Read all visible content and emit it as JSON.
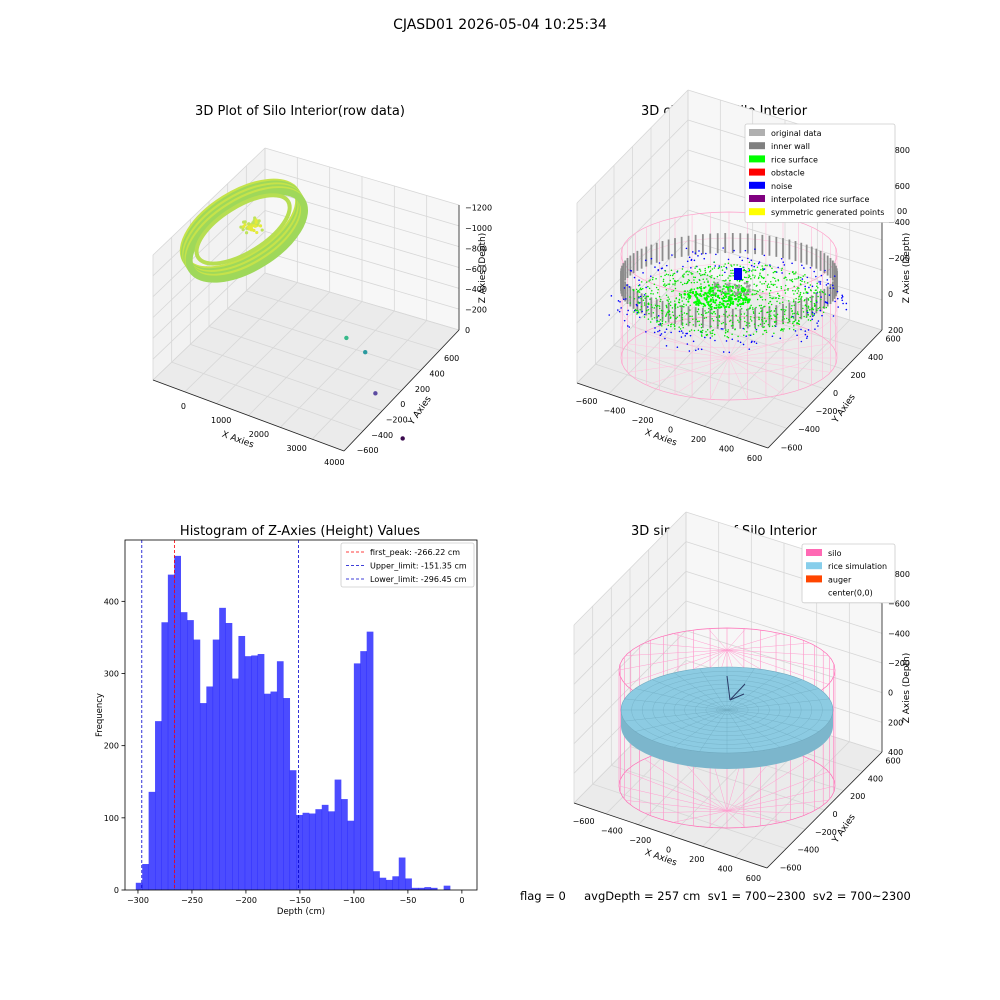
{
  "suptitle": "CJASD01 2026-05-04 10:25:34",
  "footer": "flag = 0     avgDepth = 257 cm  sv1 = 700~2300  sv2 = 700~2300",
  "chart_data": [
    {
      "type": "scatter",
      "title": "3D Plot of Silo Interior(row data)",
      "xlabel": "X Axies",
      "ylabel": "Y Axies",
      "zlabel": "Z Axies (Depth)",
      "x_ticks": [
        "0",
        "1000",
        "2000",
        "3000",
        "4000"
      ],
      "y_ticks": [
        "600",
        "400",
        "200",
        "0",
        "−200",
        "−400",
        "−600"
      ],
      "z_ticks": [
        "0",
        "−200",
        "−400",
        "−600",
        "−800",
        "−1000",
        "−1200"
      ],
      "outliers": [
        {
          "x": 1550,
          "y": -100,
          "z": -800
        },
        {
          "x": 1800,
          "y": 30,
          "z": -1000
        },
        {
          "x": 2600,
          "y": -250,
          "z": -1100
        },
        {
          "x": 3800,
          "y": -500,
          "z": -1200
        }
      ]
    },
    {
      "type": "scatter",
      "title": "3D classify of Silo Interior",
      "xlabel": "X Axies",
      "ylabel": "Y Axies",
      "zlabel": "Z Axies (Depth)",
      "x_ticks": [
        "−600",
        "−400",
        "−200",
        "0",
        "200",
        "400",
        "600"
      ],
      "y_ticks": [
        "600",
        "400",
        "200",
        "0",
        "−200",
        "−400",
        "−600"
      ],
      "z_ticks": [
        "200",
        "0",
        "−200",
        "−400",
        "−600",
        "−800"
      ],
      "z_partial_tick": "00",
      "legend_position": "top-right",
      "legend": [
        {
          "label": "original data",
          "color": "#b0b0b0"
        },
        {
          "label": "inner wall",
          "color": "#808080"
        },
        {
          "label": "rice surface",
          "color": "#00ff00"
        },
        {
          "label": "obstacle",
          "color": "#ff0000"
        },
        {
          "label": "noise",
          "color": "#0000ff"
        },
        {
          "label": "interpolated rice surface",
          "color": "#800080"
        },
        {
          "label": "symmetric generated points",
          "color": "#ffff00"
        }
      ]
    },
    {
      "type": "bar",
      "title": "Histogram of Z-Axies (Height) Values",
      "xlabel": "Depth (cm)",
      "ylabel": "Frequency",
      "bin_start": -302,
      "bin_width": 5.94,
      "values": [
        10,
        36,
        136,
        234,
        371,
        437,
        463,
        385,
        374,
        347,
        259,
        282,
        347,
        391,
        370,
        293,
        352,
        324,
        325,
        327,
        272,
        275,
        317,
        266,
        166,
        104,
        107,
        106,
        112,
        118,
        109,
        153,
        126,
        96,
        314,
        331,
        358,
        26,
        17,
        14,
        19,
        45,
        16,
        3,
        3,
        4,
        3,
        0,
        6
      ],
      "xlim": [
        -312,
        14
      ],
      "ylim": [
        0,
        485
      ],
      "x_ticks": [
        -300,
        -250,
        -200,
        -150,
        -100,
        -50,
        0
      ],
      "y_ticks": [
        0,
        100,
        200,
        300,
        400
      ],
      "bar_color": "#0000ff",
      "vlines": [
        {
          "label": "first_peak: -266.22 cm",
          "x": -266.22,
          "color": "#ff0000"
        },
        {
          "label": "Upper_limit: -151.35 cm",
          "x": -151.35,
          "color": "#0000cc"
        },
        {
          "label": "Lower_limit: -296.45 cm",
          "x": -296.45,
          "color": "#0000cc"
        }
      ],
      "legend_position": "top-right"
    },
    {
      "type": "scatter",
      "title": "3D simulation of Silo Interior",
      "xlabel": "X Axies",
      "ylabel": "Y Axies",
      "zlabel": "Z Axies (Depth)",
      "x_ticks": [
        "−600",
        "−400",
        "−200",
        "0",
        "200",
        "400",
        "600"
      ],
      "y_ticks": [
        "600",
        "400",
        "200",
        "0",
        "−200",
        "−400",
        "−600"
      ],
      "z_ticks": [
        "400",
        "200",
        "0",
        "−200",
        "−400",
        "−600",
        "−800"
      ],
      "legend_position": "top-right",
      "legend": [
        {
          "label": "silo",
          "color": "#ff69b4"
        },
        {
          "label": "rice simulation",
          "color": "#87ceeb"
        },
        {
          "label": "auger",
          "color": "#ff4500"
        },
        {
          "label": "center(0,0)",
          "color": "#ffffff"
        }
      ]
    }
  ]
}
